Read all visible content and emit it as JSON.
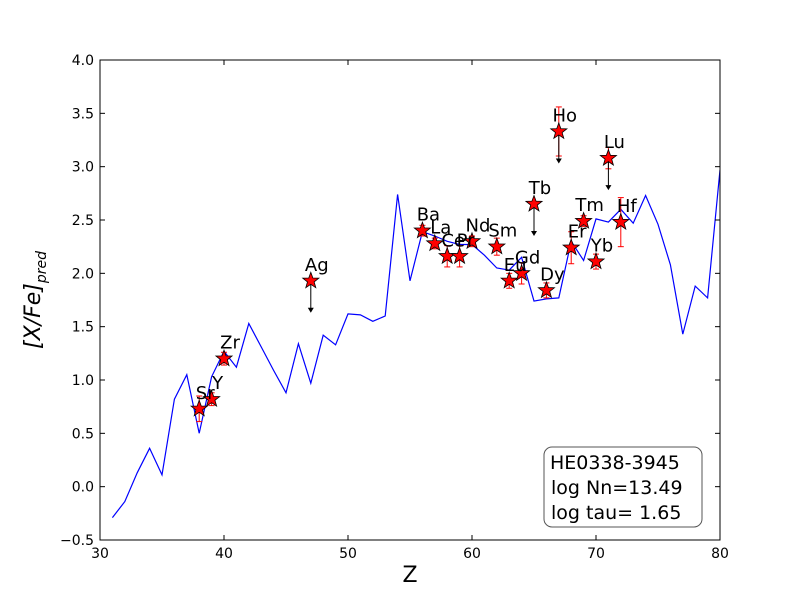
{
  "chart_data": {
    "type": "scatter",
    "xlabel": "Z",
    "ylabel": "[X/Fe]_pred",
    "xlim": [
      30,
      80
    ],
    "ylim": [
      -0.5,
      4.0
    ],
    "xticks": [
      30,
      40,
      50,
      60,
      70,
      80
    ],
    "yticks": [
      -0.5,
      0.0,
      0.5,
      1.0,
      1.5,
      2.0,
      2.5,
      3.0,
      3.5,
      4.0
    ],
    "x_tick_labels": [
      "30",
      "40",
      "50",
      "60",
      "70",
      "80"
    ],
    "y_tick_labels": [
      "−0.5",
      "0.0",
      "0.5",
      "1.0",
      "1.5",
      "2.0",
      "2.5",
      "3.0",
      "3.5",
      "4.0"
    ],
    "grid": false,
    "line_color": "#0000ff",
    "marker_color": "#ff0000",
    "errorbar_color": "#ff0000",
    "model_line": {
      "x": [
        31,
        32,
        33,
        34,
        35,
        36,
        37,
        38,
        39,
        40,
        41,
        42,
        43,
        44,
        45,
        46,
        47,
        48,
        49,
        50,
        51,
        52,
        53,
        54,
        55,
        56,
        57,
        58,
        59,
        60,
        61,
        62,
        63,
        64,
        65,
        66,
        67,
        68,
        69,
        70,
        71,
        72,
        73,
        74,
        75,
        76,
        77,
        78,
        79,
        80
      ],
      "y": [
        -0.29,
        -0.14,
        0.13,
        0.36,
        0.11,
        0.82,
        1.05,
        0.5,
        1.03,
        1.27,
        1.12,
        1.53,
        1.31,
        1.09,
        0.88,
        1.34,
        0.97,
        1.42,
        1.33,
        1.62,
        1.61,
        1.55,
        1.6,
        2.74,
        1.93,
        2.39,
        2.35,
        2.3,
        2.27,
        2.27,
        2.17,
        2.05,
        2.03,
        2.15,
        1.74,
        1.76,
        1.77,
        2.3,
        2.12,
        2.51,
        2.48,
        2.6,
        2.47,
        2.73,
        2.46,
        2.08,
        1.43,
        1.88,
        1.77,
        2.97
      ]
    },
    "points": [
      {
        "label": "Sr",
        "z": 38,
        "value": 0.73,
        "err": 0.12,
        "upper_limit": false
      },
      {
        "label": "Y",
        "z": 39,
        "value": 0.82,
        "err": 0.06,
        "upper_limit": false
      },
      {
        "label": "Zr",
        "z": 40,
        "value": 1.2,
        "err": 0.06,
        "upper_limit": false
      },
      {
        "label": "Ag",
        "z": 47,
        "value": 1.93,
        "err": 0.0,
        "upper_limit": true
      },
      {
        "label": "Ba",
        "z": 56,
        "value": 2.4,
        "err": 0.05,
        "upper_limit": false
      },
      {
        "label": "La",
        "z": 57,
        "value": 2.28,
        "err": 0.05,
        "upper_limit": false
      },
      {
        "label": "Ce",
        "z": 58,
        "value": 2.16,
        "err": 0.1,
        "upper_limit": false
      },
      {
        "label": "Pr",
        "z": 59,
        "value": 2.16,
        "err": 0.1,
        "upper_limit": false
      },
      {
        "label": "Nd",
        "z": 60,
        "value": 2.3,
        "err": 0.05,
        "upper_limit": false
      },
      {
        "label": "Sm",
        "z": 62,
        "value": 2.25,
        "err": 0.08,
        "upper_limit": false
      },
      {
        "label": "Eu",
        "z": 63,
        "value": 1.93,
        "err": 0.07,
        "upper_limit": false
      },
      {
        "label": "Gd",
        "z": 64,
        "value": 2.0,
        "err": 0.1,
        "upper_limit": false
      },
      {
        "label": "Tb",
        "z": 65,
        "value": 2.65,
        "err": 0.0,
        "upper_limit": true
      },
      {
        "label": "Dy",
        "z": 66,
        "value": 1.84,
        "err": 0.07,
        "upper_limit": false
      },
      {
        "label": "Ho",
        "z": 67,
        "value": 3.33,
        "err": 0.23,
        "upper_limit": true
      },
      {
        "label": "Er",
        "z": 68,
        "value": 2.24,
        "err": 0.15,
        "upper_limit": false
      },
      {
        "label": "Tm",
        "z": 69,
        "value": 2.49,
        "err": 0.05,
        "upper_limit": false
      },
      {
        "label": "Yb",
        "z": 70,
        "value": 2.11,
        "err": 0.07,
        "upper_limit": false
      },
      {
        "label": "Lu",
        "z": 71,
        "value": 3.08,
        "err": 0.1,
        "upper_limit": true
      },
      {
        "label": "Hf",
        "z": 72,
        "value": 2.48,
        "err": 0.23,
        "upper_limit": false
      }
    ],
    "annotation_box": {
      "lines": [
        "HE0338-3945",
        "log Nn=13.49",
        "log tau= 1.65"
      ],
      "placement": "bottom-right"
    }
  }
}
